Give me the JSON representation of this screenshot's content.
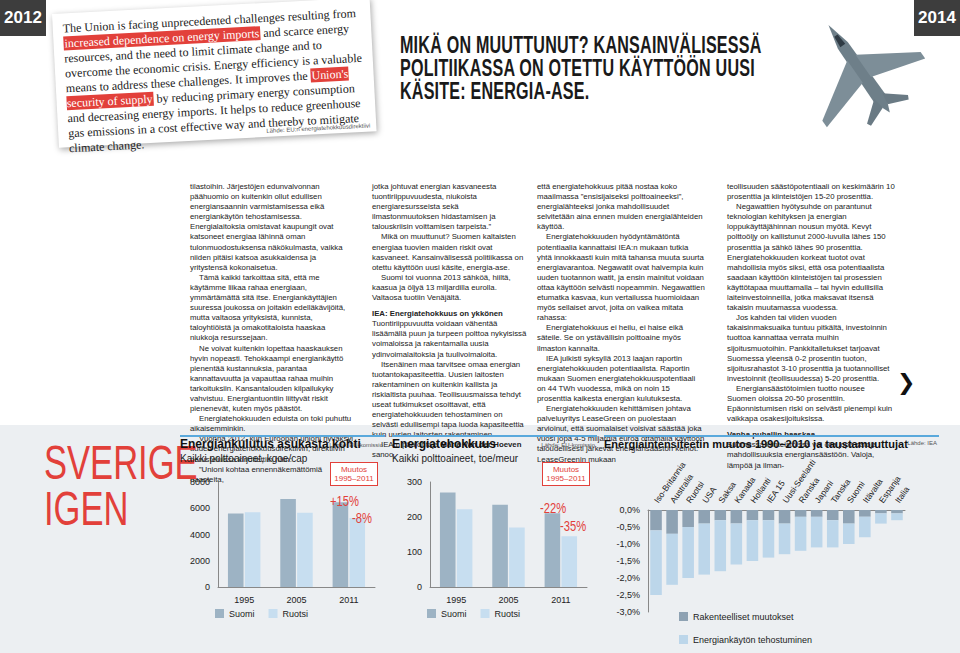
{
  "header": {
    "year_left": "2012",
    "year_right": "2014"
  },
  "quote": {
    "segments": [
      {
        "text": "The Union is facing unprecedented challenges resulting from "
      },
      {
        "text": "increased dependence on energy imports",
        "highlight": true
      },
      {
        "text": " and scarce energy resources, and the need to limit climate change and to overcome the economic crisis. Energy efficiency is a valuable means to address these challenges. It improves the "
      },
      {
        "text": "Union's security of supply",
        "highlight": true
      },
      {
        "text": " by reducing primary energy consumption and decreasing energy imports. It helps to reduce greenhouse gas emissions in a cost effective way and thereby to mitigate climate change."
      }
    ],
    "source": "Lähde: EU:n energiatehokkuusdirektiivi"
  },
  "headline": "MIKÄ ON MUUTTUNUT? KANSAINVÄLISESSÄ POLITIIKASSA ON OTETTU KÄYTTÖÖN UUSI KÄSITE: ENERGIA-ASE.",
  "article": {
    "columns": [
      [
        {
          "text": "tilastoihin. Järjestöjen edunvalvonnan päähuomio on kuitenkin ollut edullisen energiansaannin varmistamisessa eikä energiankäytön tehostamisessa. Energialaitoksia omistavat kaupungit ovat katsoneet energiaa lähinnä oman tulonmuodostuksensa näkökulmasta, vaikka niiden pitäisi katsoa asukkaidensa ja yritystensä kokonaisetua."
        },
        {
          "text": "Tämä kaikki tarkoittaa sitä, että me käytämme liikaa rahaa energiaan, ymmärtämättä sitä itse. Energiankäyttäjien suuressa joukossa on joitakin edelläkävijöitä, mutta valtaosa yrityksistä, kunnista, taloyhtiöistä ja omakotitaloista haaskaa niukkoja resurssejaan."
        },
        {
          "text": "Ne voivat kuitenkin lopettaa haaskauksen hyvin nopeasti. Tehokkaampi energiankäyttö pienentää kustannuksia, parantaa kannattavuutta ja vapauttaa rahaa muihin tarkoituksiin. Kansantalouden kilpailukyky vahvistuu. Energiantuontiin liittyvät riskit pienenevät, kuten myös päästöt."
        },
        {
          "text": "Energiatehokkuuden eduista on toki puhuttu aikaisemminkin."
        },
        {
          "text": "Vuonna 2012, kun Euroopan unioni hyväksyi uuden energiatehokkuusdirektiivin, direktiivin perusteluissa kirjoitettiin näin:"
        },
        {
          "text": "”Unioni kohtaa ennennäkemättömiä haasteita,"
        }
      ],
      [
        {
          "text": "jotka johtuvat energian kasvaneesta tuontiriippuvuudesta, niukoista energiaresursseista sekä ilmastonmuutoksen hidastamisen ja talouskriisin voittamisen tarpeista.”"
        },
        {
          "text": "Mikä on muuttunut? Suomen kaltaisten energiaa tuovien maiden riskit ovat kasvaneet. Kansainvälisessä politiikassa on otettu käyttöön uusi käsite, energia-ase."
        },
        {
          "text": "Suomi toi vuonna 2013 sähköä, hiiltä, kaasua ja öljyä 13 miljardilla eurolla. Valtaosa tuotiin Venäjältä."
        },
        {
          "heading": "IEA: Energiatehokkuus on ykkönen"
        },
        {
          "text": "Tuontiriippuvuutta voidaan vähentää lisäämällä puun ja turpeen polttoa nykyisissä voimaloissa ja rakentamalla uusia ydinvoimalaitoksia ja tuulivoimaloita."
        },
        {
          "text": "Itsenäinen maa tarvitsee omaa energian tuotantokapasiteettia. Uusien laitosten rakentaminen on kuitenkin kallista ja riskialtista puuhaa. Teollisuusmaissa tehdyt useat tutkimukset osoittavat, että energiatehokkuuden tehostaminen on selvästi edullisempi tapa luoda kapasiteettia kuin uusien laitosten rakentaminen."
        },
        {
          "segments": [
            {
              "text": "IEA:n pääjohtaja "
            },
            {
              "text": "Maria Van der Hoeven",
              "bold": true
            },
            {
              "text": " sanoo,"
            }
          ]
        }
      ],
      [
        {
          "text": "että energiatehokkuus pitää nostaa koko maailmassa ”ensisijaiseksi polttoaineeksi”, energialähteeksi jonka mahdollisuudet selvitetään aina ennen muiden energialähteiden käyttöä."
        },
        {
          "text": "Energiatehokkuuden hyödyntämätöntä potentiaalia kannattaisi IEA:n mukaan tutkia yhtä innokkaasti kuin mitä tahansa muuta suurta energiavarantoa. Negawatit ovat halvempia kuin uuden tuotannon watit, ja ensin mainitut voidaan ottaa käyttöön selvästi nopeammin. Negawattien etumatka kasvaa, kun vertailussa huomioidaan myös sellaiset arvot, joita on vaikea mitata rahassa:"
        },
        {
          "text": "Energiatehokkuus ei heilu, ei haise eikä säteile. Se on ystävällisin polttoaine myös ilmaston kannalta."
        },
        {
          "text": "IEA julkisti syksyllä 2013 laajan raportin energiatehokkuuden potentiaalista. Raportin mukaan Suomen energiatehokkuuspotentiaali on 44 TWh vuodessa, mikä on noin 15 prosenttia kaikesta energian kulutuksesta."
        },
        {
          "text": "Energiatehokkuuden kehittämisen johtava palveluyritys LeaseGreen on puolestaan arvioinut, että suomalaiset voisivat säästää joka vuosi jopa 4-5 miljardia euroa ottamalla käyttöön taloudellisesti järkevät energiansäästön keinot. LeaseGreenin mukaan"
        }
      ],
      [
        {
          "text": "teollisuuden säästöpotentiaali on keskimäärin 10 prosenttia ja kiinteistöjen 15-20 prosenttia."
        },
        {
          "text": "Negawattien hyötysuhde on parantunut teknologian kehityksen ja energian loppukäyttäjähinnan nousun myötä. Kevyt polttoöljy on kallistunut 2000-luvulla lähes 150 prosenttia ja sähkö lähes 90 prosenttia. Energiatehokkuuden korkeat tuotot ovat mahdollisia myös siksi, että osa potentiaalista saadaan käyttöön kiinteistöjen tai prosessien käyttötapaa muuttamalla – tai hyvin edullisilla laiteinvestoinneilla, jotka maksavat itsensä takaisin muutamassa vuodessa."
        },
        {
          "text": "Jos kahden tai viiden vuoden takaisinmaksuaika tuntuu pitkältä, investoinnin tuottoa kannattaa verrata muihin sijoitusmuotoihin. Pankkitalletukset tarjoavat Suomessa yleensä 0-2 prosentin tuoton, sijoitusrahastot 3-10 prosenttia ja tuotannolliset investoinnit (teollisuudessa) 5-20 prosenttia."
        },
        {
          "text": "Energiansäästötoimien tuotto nousee Suomen oloissa 20-50 prosenttiin. Epäonnistumisen riski on selvästi pienempi kuin vaikkapa osakesijoituksissa."
        },
        {
          "heading": "Vanha puhallin haaskaa"
        },
        {
          "text": "Suomessa kiinteistöissä voi olla jopa satoja mahdollisuuksia energiansäästöön. Valoja, lämpöä ja ilman-"
        }
      ]
    ],
    "continue_mark": "❯"
  },
  "sidebar_title": "SVERIGE IGEN",
  "chart_data": [
    {
      "type": "bar",
      "title": "Energiankulutus asukasta kohti",
      "subtitle": "Kaikki polttoaineet, kgoe/cap",
      "source": "Lähde: EU-komissio",
      "categories": [
        "1995",
        "2005",
        "2011"
      ],
      "series": [
        {
          "name": "Suomi",
          "color": "#9db3c4",
          "values": [
            5600,
            6700,
            6450
          ]
        },
        {
          "name": "Ruotsi",
          "color": "#c7def0",
          "values": [
            5700,
            5650,
            5250
          ]
        }
      ],
      "ylim": [
        0,
        8000
      ],
      "yticks": [
        0,
        2000,
        4000,
        6000,
        8000
      ],
      "grid": false,
      "legend": "bottom",
      "annotations": {
        "box": "Muutos 1995–2011",
        "changes": [
          {
            "series": "Suomi",
            "text": "+15%"
          },
          {
            "series": "Ruotsi",
            "text": "-8%"
          }
        ]
      }
    },
    {
      "type": "bar",
      "title": "Energiatehokkuus",
      "subtitle": "Kaikki polttoaineet, toe/meur",
      "source": "Lähde: EU-komissio",
      "categories": [
        "1995",
        "2005",
        "2011"
      ],
      "series": [
        {
          "name": "Suomi",
          "color": "#9db3c4",
          "values": [
            270,
            235,
            211
          ]
        },
        {
          "name": "Ruotsi",
          "color": "#c7def0",
          "values": [
            222,
            170,
            145
          ]
        }
      ],
      "ylim": [
        0,
        300
      ],
      "yticks": [
        0,
        100,
        200,
        300
      ],
      "grid": false,
      "legend": "bottom",
      "annotations": {
        "box": "Muutos 1995–2011",
        "changes": [
          {
            "series": "Suomi",
            "text": "-22%"
          },
          {
            "series": "Ruotsi",
            "text": "-35%"
          }
        ]
      }
    },
    {
      "type": "bar",
      "title": "Energiaintensiteetin muutos 1990–2010 ja taustamuuttujat",
      "source": "Lähde: IEA",
      "categories": [
        "Iso-Britannia",
        "Australia",
        "Ruotsi",
        "USA",
        "Saksa",
        "Kanada",
        "Hollanti",
        "IEA 15",
        "Uusi-Seelanti",
        "Ranska",
        "Japani",
        "Tanska",
        "Suomi",
        "Itävalta",
        "Espanja",
        "Italia"
      ],
      "series": [
        {
          "name": "Rakenteelliset muutokset",
          "color": "#8ea2b3",
          "values": [
            -0.6,
            -0.7,
            -0.5,
            -0.4,
            -0.3,
            -0.4,
            -0.3,
            -0.3,
            -0.4,
            -0.2,
            -0.2,
            -0.3,
            -0.4,
            -0.2,
            -0.1,
            -0.1
          ]
        },
        {
          "name": "Energiankäytön tehostuminen",
          "color": "#bcd6ea",
          "values": [
            -1.9,
            -1.5,
            -1.5,
            -1.5,
            -1.5,
            -1.2,
            -1.2,
            -1.1,
            -0.9,
            -1.0,
            -0.9,
            -0.8,
            -0.6,
            -0.6,
            -0.3,
            -0.2
          ]
        }
      ],
      "stacked": true,
      "ylim": [
        -3.0,
        0
      ],
      "yticks": [
        {
          "value": -3.0,
          "label": "-3,0%"
        },
        {
          "value": -2.5,
          "label": "-2,5%"
        },
        {
          "value": -2.0,
          "label": "-2,0%"
        },
        {
          "value": -1.5,
          "label": "-1,5%"
        },
        {
          "value": -1.0,
          "label": "-1,0%"
        },
        {
          "value": -0.5,
          "label": "-0,5%"
        },
        {
          "value": 0,
          "label": "0,0%"
        }
      ],
      "grid": false,
      "legend": "bottom"
    }
  ]
}
